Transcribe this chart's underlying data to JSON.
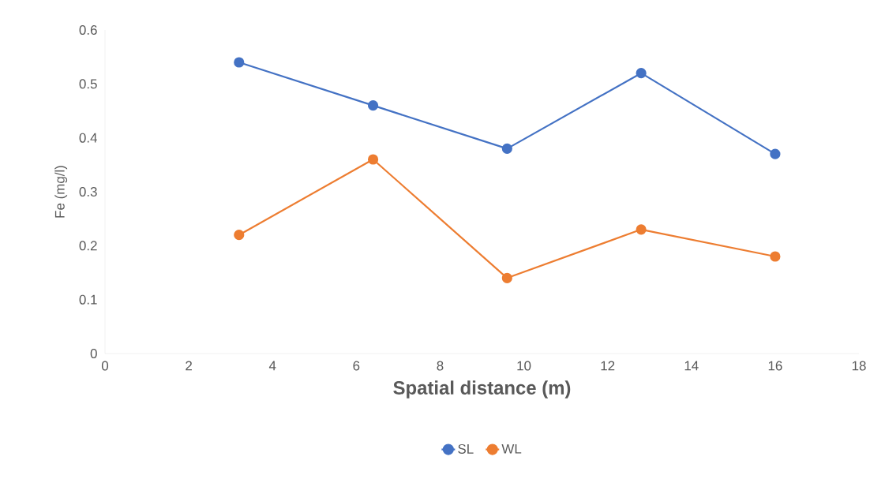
{
  "chart_data": {
    "type": "line",
    "xlabel": "Spatial distance (m)",
    "ylabel": "Fe (mg/l)",
    "x": [
      3.2,
      6.4,
      9.6,
      12.8,
      16
    ],
    "series": [
      {
        "name": "SL",
        "color": "#4472c4",
        "values": [
          0.54,
          0.46,
          0.38,
          0.52,
          0.37
        ]
      },
      {
        "name": "WL",
        "color": "#ed7d31",
        "values": [
          0.22,
          0.36,
          0.14,
          0.23,
          0.18
        ]
      }
    ],
    "xlim": [
      0,
      18
    ],
    "xticks": [
      0,
      2,
      4,
      6,
      8,
      10,
      12,
      14,
      16,
      18
    ],
    "ylim": [
      0,
      0.6
    ],
    "yticks": [
      0,
      0.1,
      0.2,
      0.3,
      0.4,
      0.5,
      0.6
    ],
    "grid": false,
    "legend": "bottom",
    "marker": "circle",
    "line_style": "solid"
  }
}
